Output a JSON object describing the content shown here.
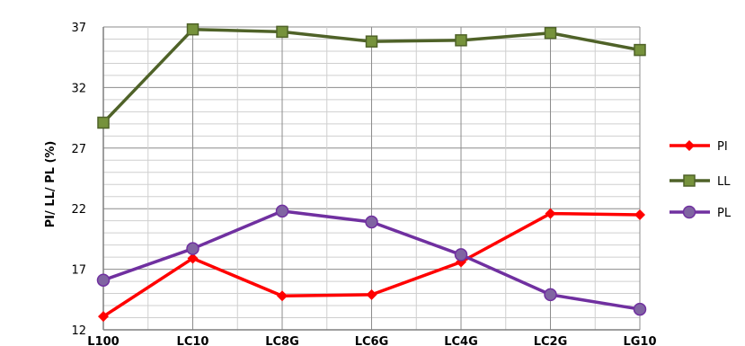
{
  "chart_data": {
    "type": "line",
    "title": "",
    "xlabel": "",
    "ylabel": "PI/ LL/ PL (%)",
    "categories": [
      "L100",
      "LC10",
      "LC8G",
      "LC6G",
      "LC4G",
      "LC2G",
      "LG10"
    ],
    "yticks": [
      12,
      17,
      22,
      27,
      32,
      37
    ],
    "ylim": [
      12,
      37
    ],
    "grid": true,
    "legend_position": "right",
    "series": [
      {
        "name": "PI",
        "color": "#ff0000",
        "marker": "diamond",
        "values": [
          13.1,
          17.9,
          14.8,
          14.9,
          17.6,
          21.6,
          21.5
        ]
      },
      {
        "name": "LL",
        "color": "#4f6228",
        "marker": "square",
        "values": [
          29.1,
          36.8,
          36.6,
          35.8,
          35.9,
          36.5,
          35.1
        ]
      },
      {
        "name": "PL",
        "color": "#7030a0",
        "marker": "circle",
        "values": [
          16.1,
          18.7,
          21.8,
          20.9,
          18.2,
          14.9,
          13.7
        ]
      }
    ]
  }
}
